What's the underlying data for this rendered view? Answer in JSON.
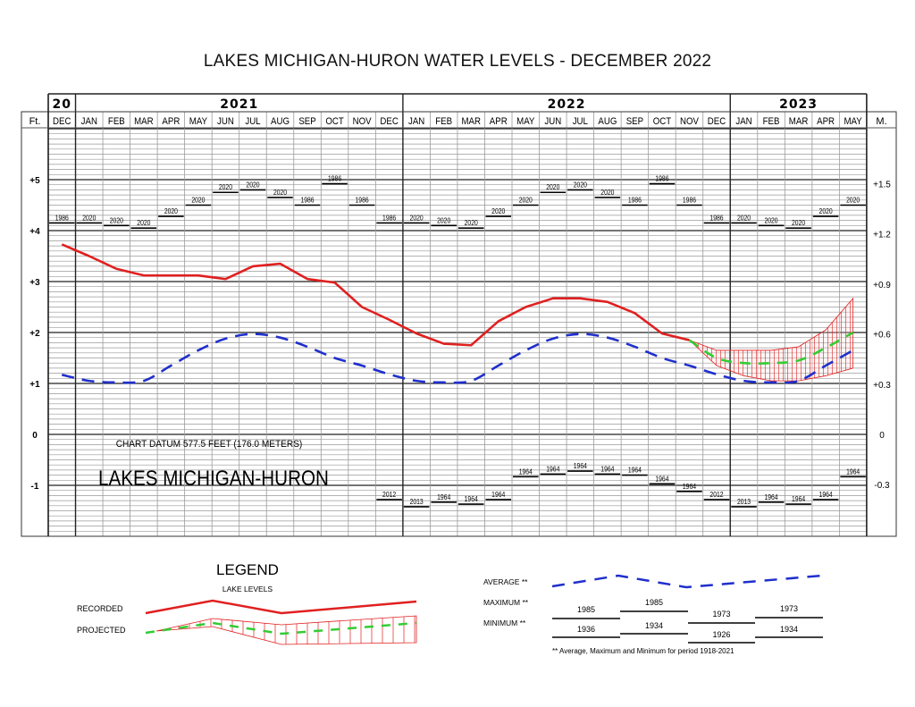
{
  "title": "LAKES MICHIGAN-HURON WATER LEVELS - DECEMBER 2022",
  "header": {
    "years": [
      {
        "label": "20",
        "start": 0,
        "span": 1
      },
      {
        "label": "2021",
        "start": 1,
        "span": 12
      },
      {
        "label": "2022",
        "start": 13,
        "span": 12
      },
      {
        "label": "2023",
        "start": 25,
        "span": 5
      }
    ],
    "months": [
      "DEC",
      "JAN",
      "FEB",
      "MAR",
      "APR",
      "MAY",
      "JUN",
      "JUL",
      "AUG",
      "SEP",
      "OCT",
      "NOV",
      "DEC",
      "JAN",
      "FEB",
      "MAR",
      "APR",
      "MAY",
      "JUN",
      "JUL",
      "AUG",
      "SEP",
      "OCT",
      "NOV",
      "DEC",
      "JAN",
      "FEB",
      "MAR",
      "APR",
      "MAY"
    ],
    "ft_label": "Ft.",
    "m_label": "M."
  },
  "axes": {
    "ft_ticks": [
      {
        "label": "+5",
        "value": 5
      },
      {
        "label": "+4",
        "value": 4
      },
      {
        "label": "+3",
        "value": 3
      },
      {
        "label": "+2",
        "value": 2
      },
      {
        "label": "+1",
        "value": 1
      },
      {
        "label": "0",
        "value": 0
      },
      {
        "label": "-1",
        "value": -1
      }
    ],
    "m_ticks": [
      {
        "label": "+1.5",
        "value_ft": 4.92
      },
      {
        "label": "+1.2",
        "value_ft": 3.94
      },
      {
        "label": "+0.9",
        "value_ft": 2.95
      },
      {
        "label": "+0.6",
        "value_ft": 1.97
      },
      {
        "label": "+0.3",
        "value_ft": 0.98
      },
      {
        "label": "0",
        "value_ft": 0
      },
      {
        "label": "-0.3",
        "value_ft": -0.98
      }
    ]
  },
  "annotations": {
    "datum": "CHART DATUM  577.5 FEET (176.0 METERS)",
    "lake_name": "LAKES MICHIGAN-HURON"
  },
  "chart_data": {
    "type": "line",
    "title": "LAKES MICHIGAN-HURON WATER LEVELS - DECEMBER 2022",
    "xlabel": "",
    "ylabel": "Ft. (above chart datum 577.5 ft)",
    "ylabel_right": "M.",
    "ylim": [
      -2.0,
      6.0
    ],
    "grid": true,
    "categories": [
      "DEC 2020",
      "JAN 2021",
      "FEB 2021",
      "MAR 2021",
      "APR 2021",
      "MAY 2021",
      "JUN 2021",
      "JUL 2021",
      "AUG 2021",
      "SEP 2021",
      "OCT 2021",
      "NOV 2021",
      "DEC 2021",
      "JAN 2022",
      "FEB 2022",
      "MAR 2022",
      "APR 2022",
      "MAY 2022",
      "JUN 2022",
      "JUL 2022",
      "AUG 2022",
      "SEP 2022",
      "OCT 2022",
      "NOV 2022",
      "DEC 2022",
      "JAN 2023",
      "FEB 2023",
      "MAR 2023",
      "APR 2023",
      "MAY 2023"
    ],
    "series": [
      {
        "name": "Recorded",
        "color": "#e02020",
        "style": "solid",
        "values": [
          3.73,
          3.5,
          3.25,
          3.12,
          3.12,
          3.12,
          3.05,
          3.3,
          3.35,
          3.05,
          2.98,
          2.5,
          2.25,
          1.98,
          1.78,
          1.75,
          2.22,
          2.5,
          2.67,
          2.67,
          2.6,
          2.38,
          1.98,
          1.85,
          null,
          null,
          null,
          null,
          null,
          null
        ]
      },
      {
        "name": "Projected (most probable)",
        "color": "#33cc33",
        "style": "dashed",
        "values": [
          null,
          null,
          null,
          null,
          null,
          null,
          null,
          null,
          null,
          null,
          null,
          null,
          null,
          null,
          null,
          null,
          null,
          null,
          null,
          null,
          null,
          null,
          null,
          1.85,
          1.5,
          1.4,
          1.4,
          1.45,
          1.7,
          2.0
        ]
      },
      {
        "name": "Projected upper",
        "color": "#e02020",
        "style": "thin",
        "values": [
          null,
          null,
          null,
          null,
          null,
          null,
          null,
          null,
          null,
          null,
          null,
          null,
          null,
          null,
          null,
          null,
          null,
          null,
          null,
          null,
          null,
          null,
          null,
          1.85,
          1.65,
          1.65,
          1.65,
          1.72,
          2.05,
          2.67
        ]
      },
      {
        "name": "Projected lower",
        "color": "#e02020",
        "style": "thin",
        "values": [
          null,
          null,
          null,
          null,
          null,
          null,
          null,
          null,
          null,
          null,
          null,
          null,
          null,
          null,
          null,
          null,
          null,
          null,
          null,
          null,
          null,
          null,
          null,
          1.85,
          1.35,
          1.15,
          1.05,
          1.05,
          1.15,
          1.3
        ]
      },
      {
        "name": "Average (1918-2021)",
        "color": "#1f2fcc",
        "style": "dashed",
        "values": [
          1.17,
          1.05,
          1.02,
          1.05,
          1.35,
          1.65,
          1.88,
          1.97,
          1.9,
          1.72,
          1.5,
          1.35,
          1.18,
          1.05,
          1.02,
          1.05,
          1.35,
          1.65,
          1.88,
          1.97,
          1.9,
          1.72,
          1.5,
          1.35,
          1.18,
          1.05,
          1.02,
          1.05,
          1.35,
          1.65
        ]
      },
      {
        "name": "Maximum (1918-2021)",
        "color": "#000000",
        "style": "step",
        "values": [
          4.15,
          4.15,
          4.1,
          4.05,
          4.28,
          4.5,
          4.75,
          4.8,
          4.65,
          4.5,
          4.92,
          4.5,
          4.15,
          4.15,
          4.1,
          4.05,
          4.28,
          4.5,
          4.75,
          4.8,
          4.65,
          4.5,
          4.92,
          4.5,
          4.15,
          4.15,
          4.1,
          4.05,
          4.28,
          4.5
        ],
        "year_labels": [
          "1986",
          "2020",
          "2020",
          "2020",
          "2020",
          "2020",
          "2020",
          "2020",
          "2020",
          "1986",
          "1986",
          "1986",
          "1986",
          "2020",
          "2020",
          "2020",
          "2020",
          "2020",
          "2020",
          "2020",
          "2020",
          "1986",
          "1986",
          "1986",
          "1986",
          "2020",
          "2020",
          "2020",
          "2020",
          "2020"
        ]
      },
      {
        "name": "Minimum (1918-2021)",
        "color": "#000000",
        "style": "step",
        "values": [
          null,
          null,
          null,
          null,
          null,
          null,
          null,
          null,
          null,
          null,
          null,
          null,
          -1.28,
          -1.42,
          -1.33,
          -1.37,
          -1.28,
          -0.83,
          -0.78,
          -0.72,
          -0.78,
          -0.8,
          -0.97,
          -1.12,
          -1.28,
          -1.42,
          -1.33,
          -1.37,
          -1.28,
          -0.83
        ],
        "year_labels": [
          null,
          null,
          null,
          null,
          null,
          null,
          null,
          null,
          null,
          null,
          null,
          null,
          "2012",
          "2013",
          "1964",
          "1964",
          "1964",
          "1964",
          "1964",
          "1964",
          "1964",
          "1964",
          "1964",
          "1964",
          "2012",
          "2013",
          "1964",
          "1964",
          "1964",
          "1964"
        ]
      }
    ],
    "annotations": [
      "CHART DATUM  577.5 FEET (176.0 METERS)",
      "LAKES MICHIGAN-HURON"
    ],
    "legend_position": "bottom"
  },
  "legend": {
    "title": "LEGEND",
    "subtitle": "LAKE LEVELS",
    "recorded_label": "RECORDED",
    "projected_label": "PROJECTED",
    "average_label": "AVERAGE **",
    "maximum_label": "MAXIMUM **",
    "minimum_label": "MINIMUM **",
    "max_years": [
      "1985",
      "1985",
      "1973",
      "1973"
    ],
    "min_years": [
      "1936",
      "1934",
      "1926",
      "1934"
    ],
    "footnote": "** Average, Maximum and Minimum for period 1918-2021"
  },
  "colors": {
    "recorded": "#e02020",
    "projected": "#33cc33",
    "average": "#1f2fcc",
    "grid_major": "#222222",
    "grid_minor": "#9a9a9a"
  }
}
